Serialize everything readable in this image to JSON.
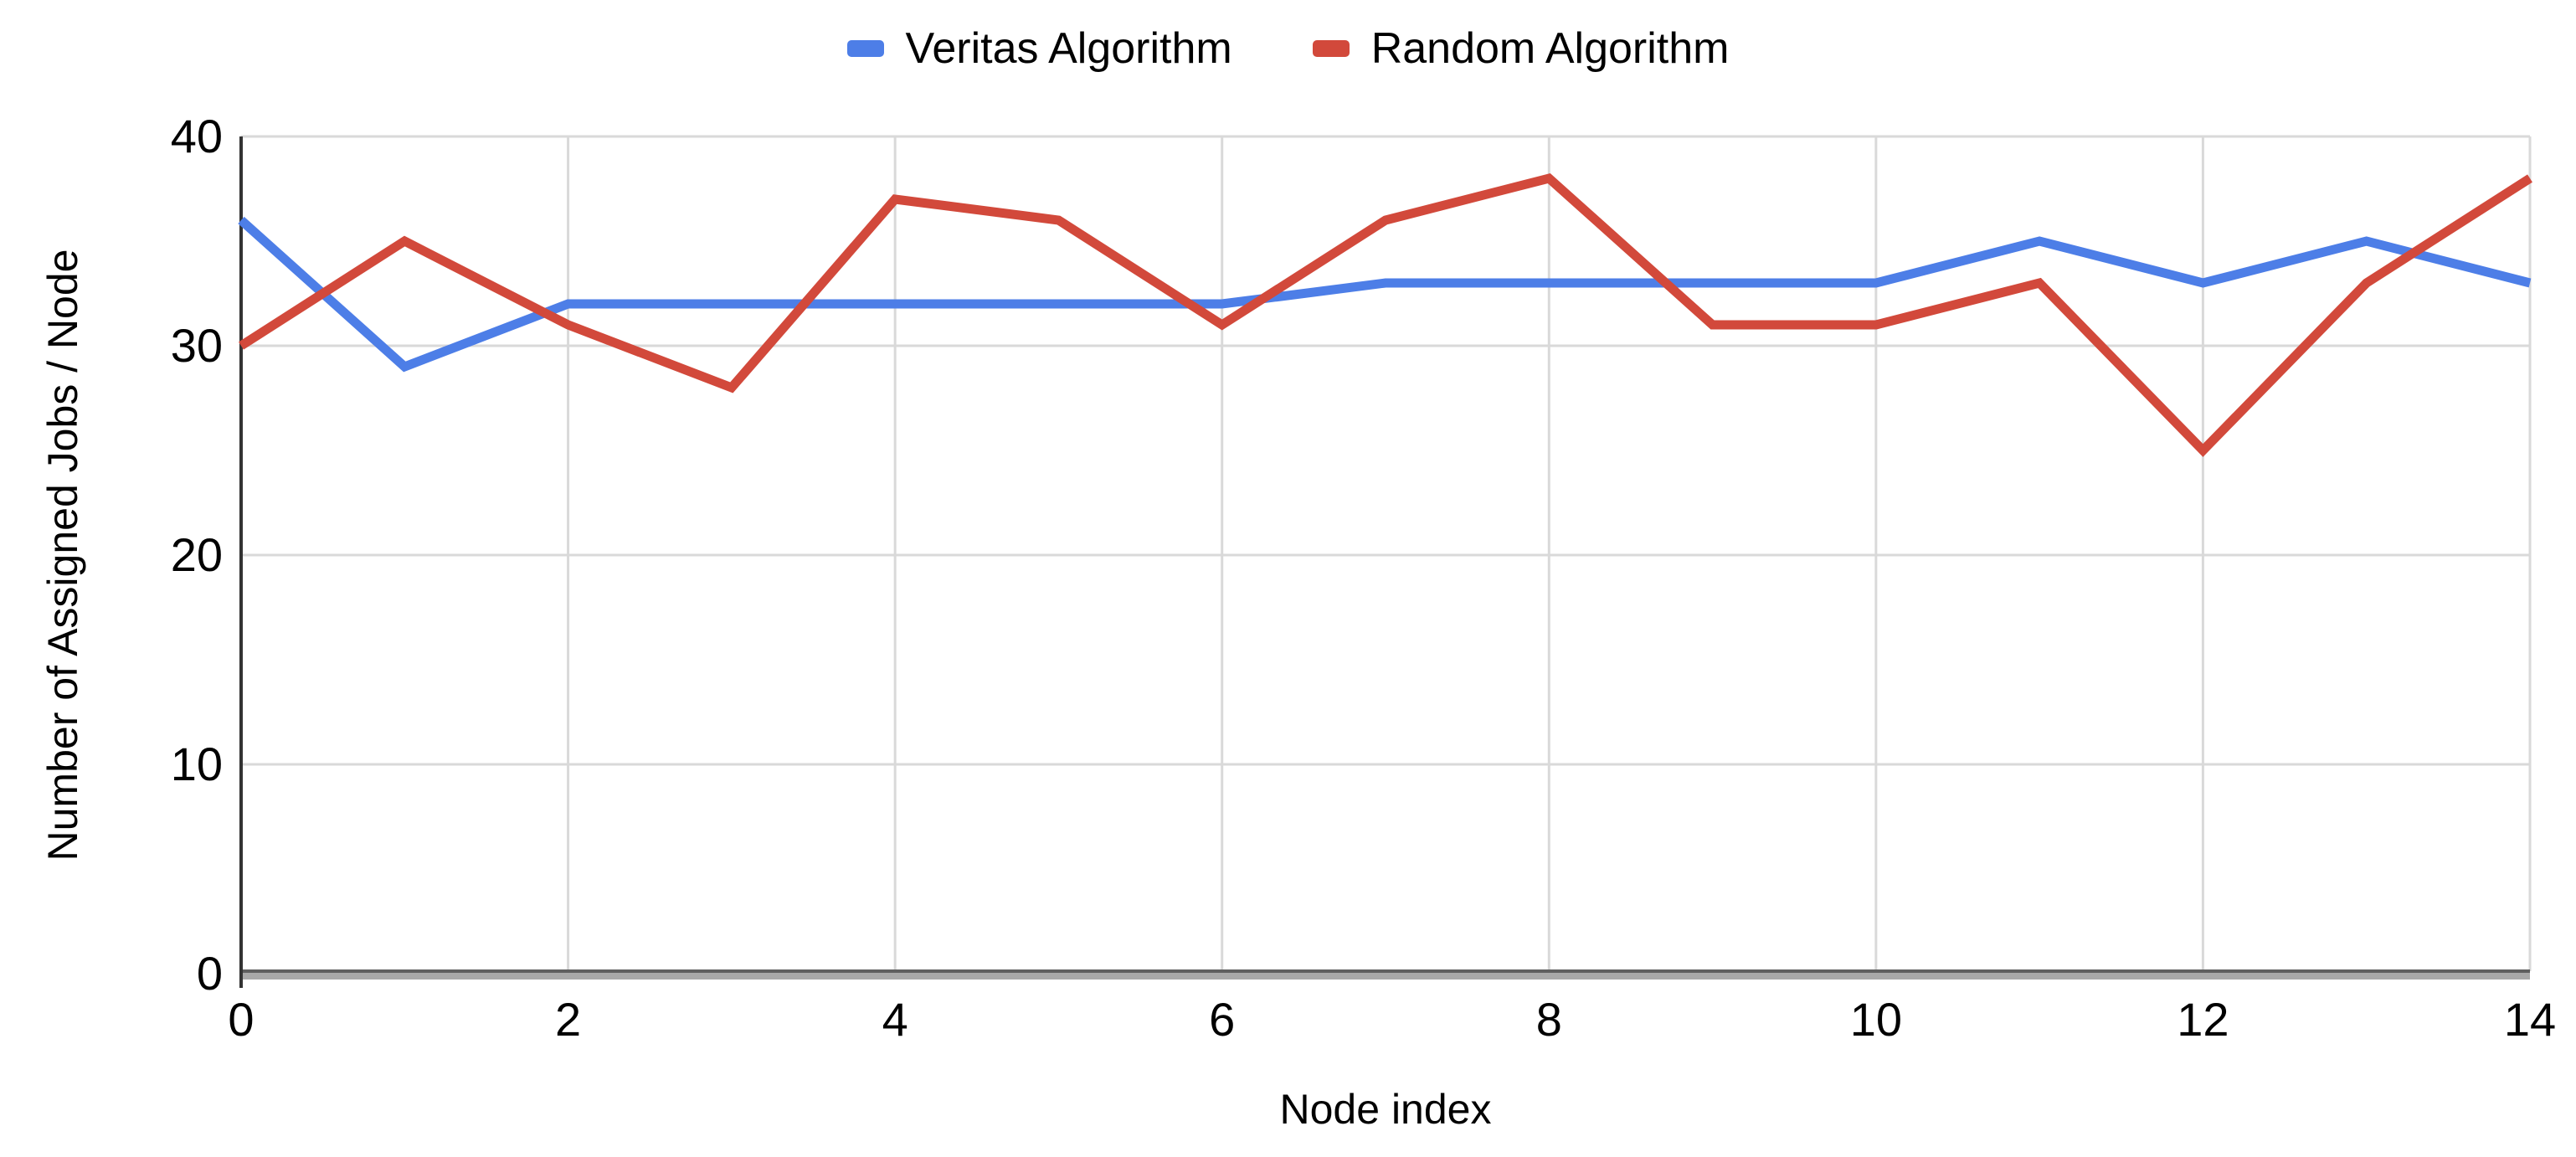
{
  "chart_data": {
    "type": "line",
    "x": [
      0,
      1,
      2,
      3,
      4,
      5,
      6,
      7,
      8,
      9,
      10,
      11,
      12,
      13,
      14
    ],
    "series": [
      {
        "name": "Veritas Algorithm",
        "color": "#4d7ee7",
        "values": [
          36,
          29,
          32,
          32,
          32,
          32,
          32,
          33,
          33,
          33,
          33,
          35,
          33,
          35,
          33
        ]
      },
      {
        "name": "Random Algorithm",
        "color": "#d2493b",
        "values": [
          30,
          35,
          31,
          28,
          37,
          36,
          31,
          36,
          38,
          31,
          31,
          33,
          25,
          33,
          38
        ]
      }
    ],
    "title": "",
    "xlabel": "Node index",
    "ylabel": "Number of Assigned Jobs / Node",
    "xlim": [
      0,
      14
    ],
    "ylim": [
      0,
      40
    ],
    "x_ticks": [
      0,
      2,
      4,
      6,
      8,
      10,
      12,
      14
    ],
    "y_ticks": [
      0,
      10,
      20,
      30,
      40
    ],
    "grid": true,
    "legend_position": "top-center",
    "gridline_color": "#d9d9d9",
    "axis_line_color": "#333333",
    "x_axis_band_dark": "#5f5f5f",
    "x_axis_band_light": "#a8a8a8",
    "text_color": "#000000",
    "line_width": 11
  }
}
